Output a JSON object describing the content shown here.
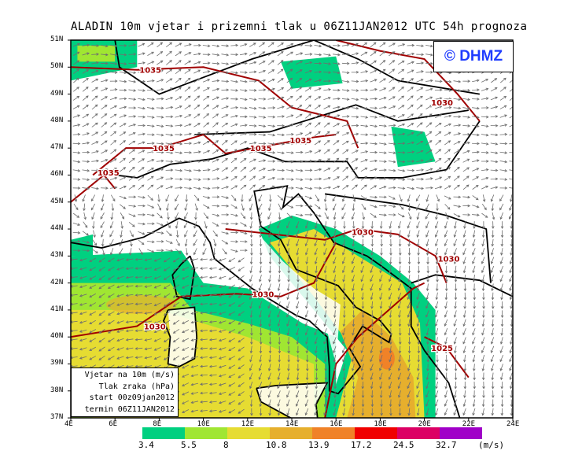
{
  "title": "ALADIN 10m vjetar i prizemni tlak u 06Z11JAN2012 UTC 54h prognoza",
  "copyright": "© DHMZ",
  "legend": {
    "line1": "Vjetar na 10m (m/s)",
    "line2": "Tlak zraka (hPa)",
    "line3": "start 00z09jan2012",
    "line4": "termin 06Z11JAN2012"
  },
  "lat_ticks": [
    "51N",
    "50N",
    "49N",
    "48N",
    "47N",
    "46N",
    "45N",
    "44N",
    "43N",
    "42N",
    "41N",
    "40N",
    "39N",
    "38N",
    "37N"
  ],
  "lon_ticks": [
    "4E",
    "6E",
    "8E",
    "10E",
    "12E",
    "14E",
    "16E",
    "18E",
    "20E",
    "22E",
    "24E"
  ],
  "colorbar": {
    "unit": "(m/s)",
    "labels": [
      "3.4",
      "5.5",
      "8",
      "10.8",
      "13.9",
      "17.2",
      "24.5",
      "32.7"
    ],
    "colors": [
      "#00d080",
      "#a0e632",
      "#e6dc32",
      "#e6af2d",
      "#f08228",
      "#f00000",
      "#dc0064",
      "#a000c8"
    ]
  },
  "isobars": [
    {
      "label": "1035",
      "lon": 7.6,
      "lat": 49.9
    },
    {
      "label": "1030",
      "lon": 20.8,
      "lat": 48.7
    },
    {
      "label": "1035",
      "lon": 8.2,
      "lat": 47.0
    },
    {
      "label": "1035",
      "lon": 5.7,
      "lat": 46.1
    },
    {
      "label": "1035",
      "lon": 12.6,
      "lat": 47.0
    },
    {
      "label": "1035",
      "lon": 14.4,
      "lat": 47.3
    },
    {
      "label": "1030",
      "lon": 17.2,
      "lat": 43.9
    },
    {
      "label": "1030",
      "lon": 21.1,
      "lat": 42.9
    },
    {
      "label": "1030",
      "lon": 12.7,
      "lat": 41.6
    },
    {
      "label": "1030",
      "lon": 7.8,
      "lat": 40.4
    },
    {
      "label": "1025",
      "lon": 20.8,
      "lat": 39.6
    }
  ],
  "colors": {
    "isobar": "#a00000",
    "arrow": "#6e6e6e",
    "coast": "#000000",
    "brand": "#1f3cff"
  }
}
